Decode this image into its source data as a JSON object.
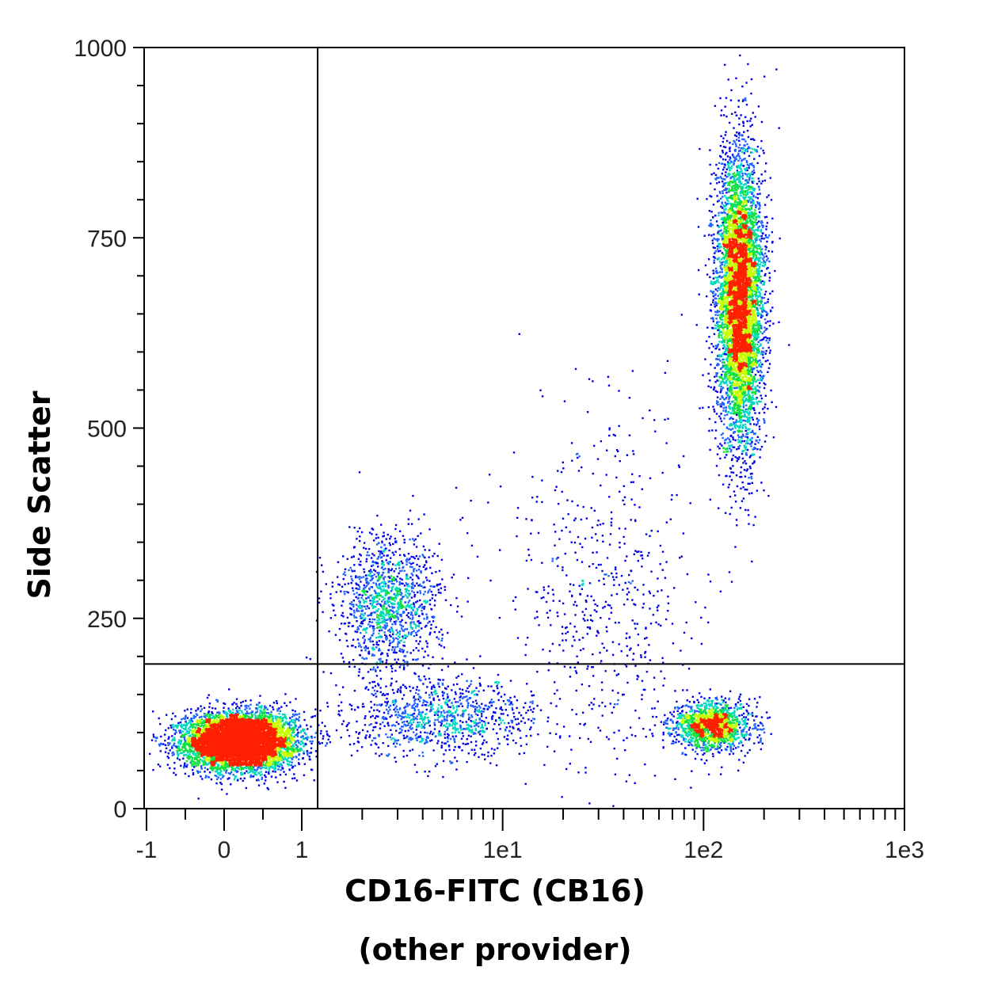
{
  "chart_data": {
    "type": "scatter",
    "style": "flow cytometry density dot plot",
    "xlabel": "CD16-FITC (CB16)",
    "xlabel_line2": "(other provider)",
    "ylabel": "Side Scatter",
    "x_scale": "biexponential (linear near 0, log above 1)",
    "xlim": [
      -1,
      1000
    ],
    "ylim": [
      0,
      1000
    ],
    "x_tick_labels": [
      "-1",
      "0",
      "1",
      "1e1",
      "1e2",
      "1e3"
    ],
    "x_tick_values": [
      -1,
      0,
      1,
      10,
      100,
      1000
    ],
    "y_tick_labels": [
      "0",
      "250",
      "500",
      "750",
      "1000"
    ],
    "y_tick_values": [
      0,
      250,
      500,
      750,
      1000
    ],
    "quadrant_gate": {
      "x": 1.2,
      "y": 190
    },
    "density_colors": [
      "#0000e6",
      "#1e60ff",
      "#00d8c0",
      "#10e040",
      "#c8ff00",
      "#ff2000"
    ],
    "populations": [
      {
        "cx": 0.2,
        "cy": 90,
        "sx": 0.35,
        "sy": 18,
        "n": 7000
      },
      {
        "cx": 2.7,
        "cy": 270,
        "sx": 0.33,
        "sy": 45,
        "n": 1300
      },
      {
        "cx": 5,
        "cy": 120,
        "sx": 0.6,
        "sy": 25,
        "n": 1000
      },
      {
        "cx": 110,
        "cy": 110,
        "sx": 0.25,
        "sy": 16,
        "n": 1500
      },
      {
        "cx": 150,
        "cy": 670,
        "sx": 0.15,
        "sy": 95,
        "n": 6000
      },
      {
        "cx": 30,
        "cy": 280,
        "sx": 0.6,
        "sy": 130,
        "n": 600
      }
    ]
  }
}
